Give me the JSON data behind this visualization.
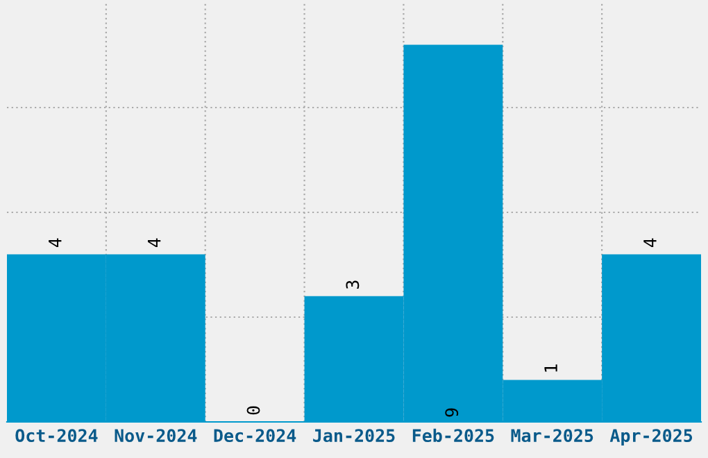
{
  "chart_data": {
    "type": "bar",
    "categories": [
      "Oct-2024",
      "Nov-2024",
      "Dec-2024",
      "Jan-2025",
      "Feb-2025",
      "Mar-2025",
      "Apr-2025"
    ],
    "values": [
      4,
      4,
      0,
      3,
      9,
      1,
      4
    ],
    "color": "#0099cc",
    "ylim": [
      0,
      10
    ],
    "yticks": [
      {
        "value": 2.5,
        "label": null
      },
      {
        "value": 5,
        "label": null
      },
      {
        "value": 7.5,
        "label": null
      }
    ],
    "tick_labels": "x",
    "grid": true,
    "data_labels": true
  }
}
